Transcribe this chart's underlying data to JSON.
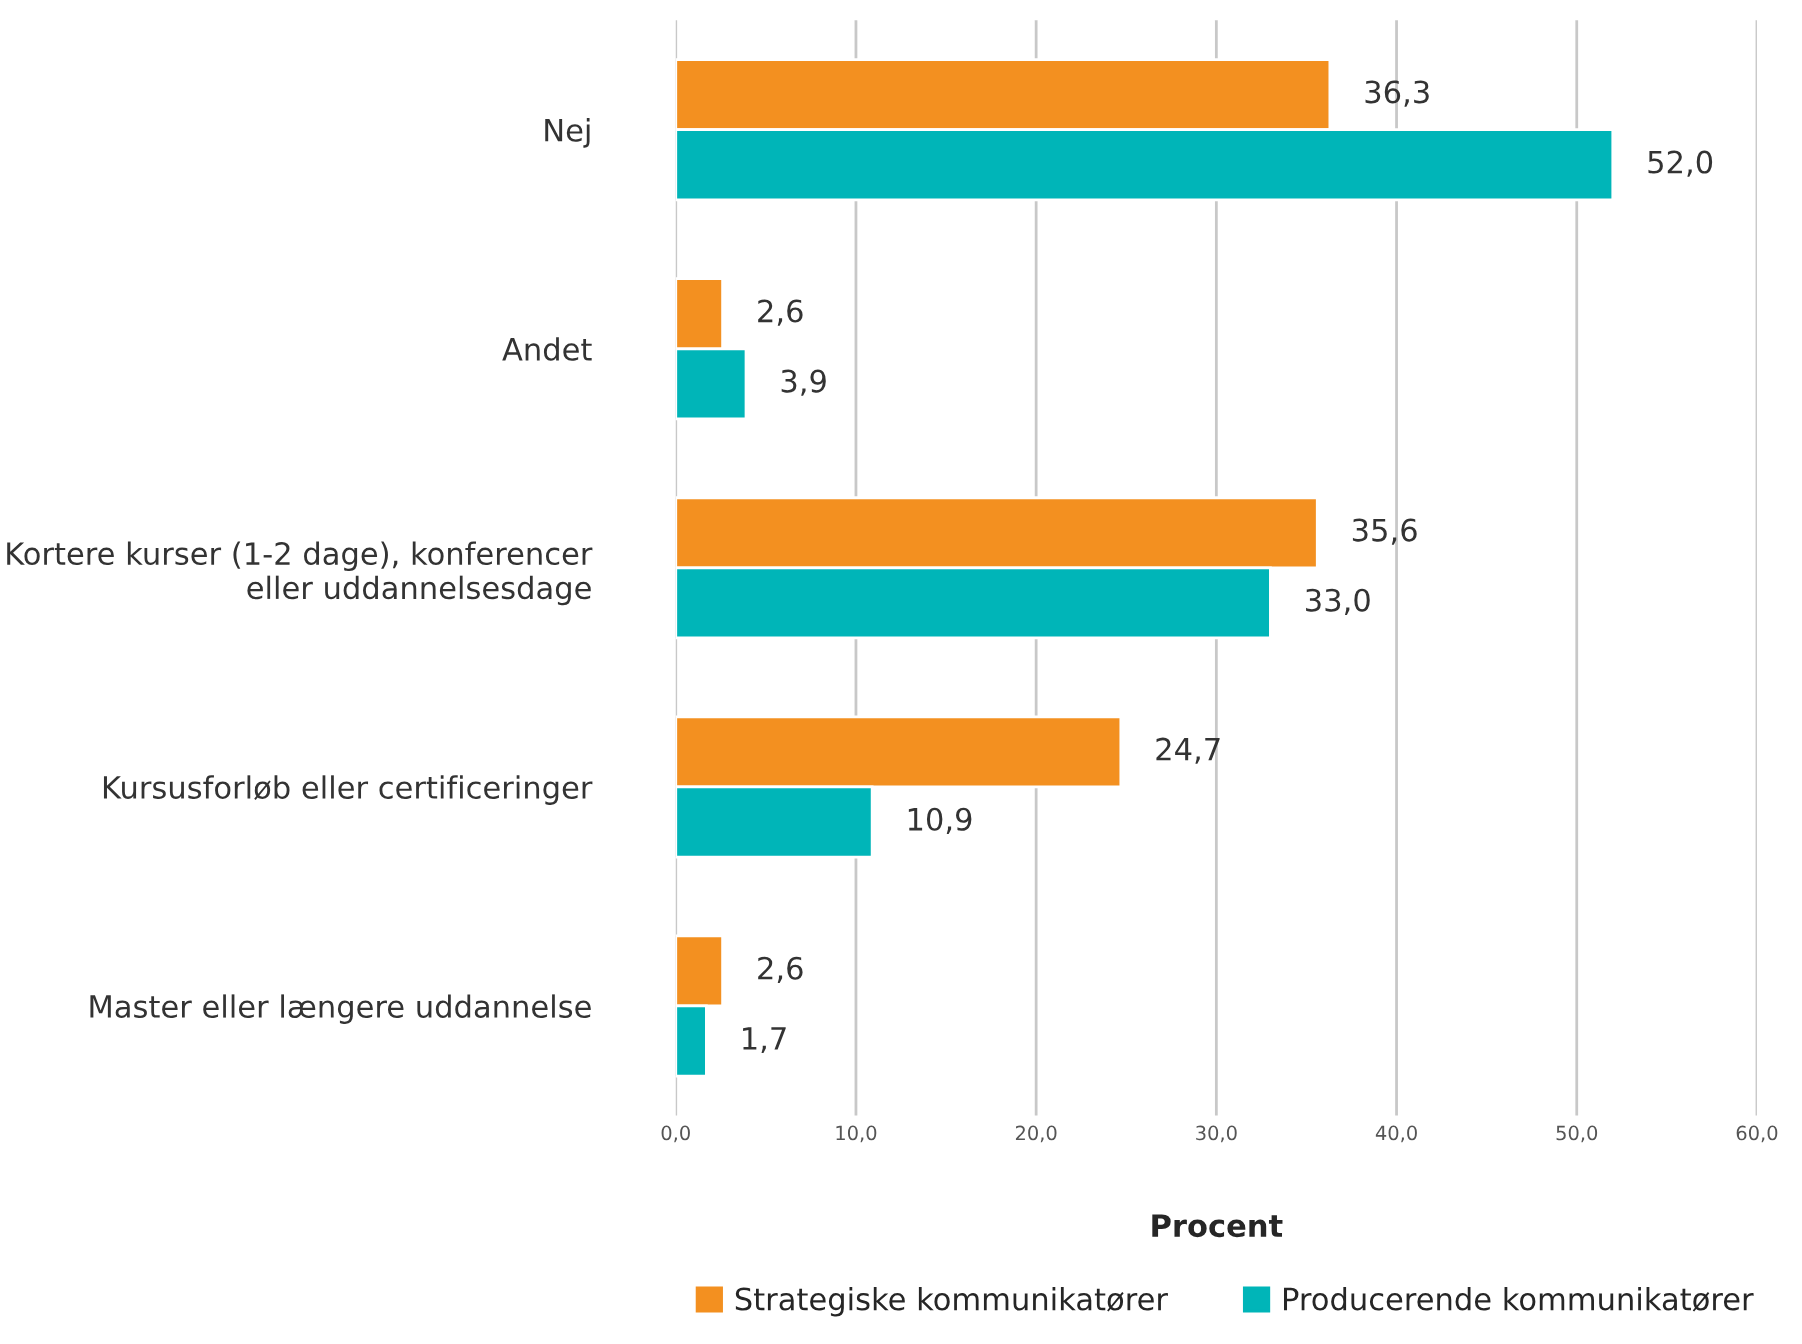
{
  "chart_data": {
    "type": "bar",
    "orientation": "horizontal",
    "xlabel": "Procent",
    "categories": [
      "Nej",
      "Andet",
      "Kortere kurser (1-2 dage), konferencer\neller uddannelsesdage",
      "Kursusforløb eller certificeringer",
      "Master eller længere uddannelse"
    ],
    "series": [
      {
        "name": "Strategiske kommunikatører",
        "color": "#f39020",
        "values": [
          36.3,
          2.6,
          35.6,
          24.7,
          2.6
        ],
        "value_labels": [
          "36,3",
          "2,6",
          "35,6",
          "24,7",
          "2,6"
        ]
      },
      {
        "name": "Producerende kommunikatører",
        "color": "#00b5b8",
        "values": [
          52.0,
          3.9,
          33.0,
          10.9,
          1.7
        ],
        "value_labels": [
          "52,0",
          "3,9",
          "33,0",
          "10,9",
          "1,7"
        ]
      }
    ],
    "xlim": [
      0,
      60
    ],
    "xticks": [
      {
        "value": 0,
        "label": "0,0"
      },
      {
        "value": 10,
        "label": "10,0"
      },
      {
        "value": 20,
        "label": "20,0"
      },
      {
        "value": 30,
        "label": "30,0"
      },
      {
        "value": 40,
        "label": "40,0"
      },
      {
        "value": 50,
        "label": "50,0"
      },
      {
        "value": 60,
        "label": "60,0"
      }
    ],
    "grid": "x",
    "legend": "bottom"
  }
}
